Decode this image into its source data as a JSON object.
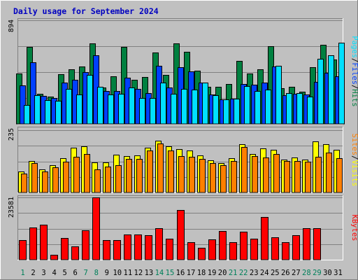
{
  "chart_data": [
    {
      "type": "bar",
      "title": "Daily usage for September 2024",
      "categories": [
        "1",
        "2",
        "3",
        "4",
        "5",
        "6",
        "7",
        "8",
        "9",
        "10",
        "11",
        "12",
        "13",
        "14",
        "15",
        "16",
        "17",
        "18",
        "19",
        "20",
        "21",
        "22",
        "23",
        "24",
        "25",
        "26",
        "27",
        "28",
        "29",
        "30",
        "31"
      ],
      "weekend_days": [
        "1",
        "7",
        "8",
        "14",
        "15",
        "21",
        "22",
        "28",
        "29"
      ],
      "ylim": [
        0,
        894
      ],
      "ytick": "894",
      "ylabel_parts": [
        "Pages",
        "Files",
        "Hits"
      ],
      "series": [
        {
          "name": "Hits",
          "color": "#008040",
          "values": [
            434,
            664,
            261,
            238,
            428,
            474,
            498,
            694,
            313,
            413,
            666,
            380,
            404,
            614,
            422,
            694,
            622,
            460,
            318,
            322,
            345,
            542,
            434,
            474,
            669,
            308,
            318,
            279,
            487,
            684,
            554
          ]
        },
        {
          "name": "Files",
          "color": "#0040ff",
          "values": [
            333,
            529,
            241,
            221,
            357,
            382,
            446,
            590,
            281,
            284,
            398,
            300,
            266,
            500,
            312,
            488,
            453,
            357,
            251,
            213,
            216,
            344,
            338,
            357,
            496,
            250,
            257,
            251,
            362,
            440,
            412
          ]
        },
        {
          "name": "Pages",
          "color": "#00e0ff",
          "values": [
            164,
            249,
            204,
            197,
            304,
            255,
            422,
            322,
            255,
            257,
            313,
            226,
            223,
            357,
            257,
            304,
            297,
            354,
            245,
            213,
            219,
            328,
            281,
            293,
            500,
            265,
            265,
            238,
            561,
            591,
            703
          ]
        }
      ]
    },
    {
      "type": "bar",
      "categories": [
        "1",
        "2",
        "3",
        "4",
        "5",
        "6",
        "7",
        "8",
        "9",
        "10",
        "11",
        "12",
        "13",
        "14",
        "15",
        "16",
        "17",
        "18",
        "19",
        "20",
        "21",
        "22",
        "23",
        "24",
        "25",
        "26",
        "27",
        "28",
        "29",
        "30",
        "31"
      ],
      "ylim": [
        0,
        235
      ],
      "ytick": "235",
      "ylabel_parts": [
        "Sites",
        "Visits"
      ],
      "series": [
        {
          "name": "Visits",
          "color": "#ffff00",
          "values": [
            79,
            120,
            86,
            102,
            130,
            170,
            175,
            114,
            114,
            142,
            136,
            139,
            168,
            195,
            173,
            165,
            159,
            139,
            121,
            110,
            130,
            181,
            146,
            167,
            161,
            125,
            131,
            123,
            193,
            181,
            160
          ]
        },
        {
          "name": "Sites",
          "color": "#ff8000",
          "values": [
            71,
            110,
            79,
            94,
            115,
            134,
            146,
            87,
            99,
            102,
            127,
            126,
            158,
            186,
            158,
            138,
            134,
            127,
            111,
            102,
            120,
            171,
            138,
            131,
            144,
            118,
            120,
            116,
            134,
            151,
            130
          ]
        }
      ]
    },
    {
      "type": "bar",
      "categories": [
        "1",
        "2",
        "3",
        "4",
        "5",
        "6",
        "7",
        "8",
        "9",
        "10",
        "11",
        "12",
        "13",
        "14",
        "15",
        "16",
        "17",
        "18",
        "19",
        "20",
        "21",
        "22",
        "23",
        "24",
        "25",
        "26",
        "27",
        "28",
        "29",
        "30",
        "31"
      ],
      "ylim": [
        0,
        23581
      ],
      "ytick": "23581",
      "ylabel_parts": [
        "KBytes"
      ],
      "series": [
        {
          "name": "KBytes",
          "color": "#ff0000",
          "values": [
            7500,
            12300,
            13200,
            1800,
            8200,
            5000,
            11100,
            23581,
            7500,
            7500,
            9500,
            9500,
            9200,
            11800,
            8000,
            18700,
            6700,
            4600,
            7600,
            10900,
            6700,
            10700,
            7900,
            16200,
            8600,
            6600,
            9300,
            12000,
            12000,
            0,
            0
          ]
        }
      ]
    }
  ]
}
